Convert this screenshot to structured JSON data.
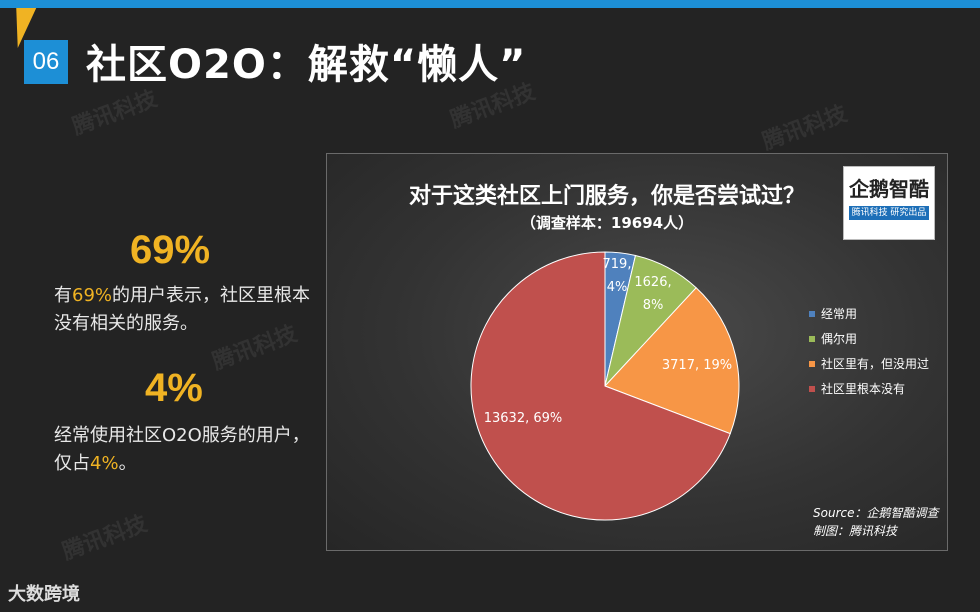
{
  "slide": {
    "number": "06",
    "title": "社区O2O：解救“懒人”",
    "watermark": "腾讯科技",
    "footer_logo": "大数跨境"
  },
  "stats": [
    {
      "value": "69%",
      "desc_before": "有",
      "desc_highlight": "69%",
      "desc_after": "的用户表示，社区里根本没有相关的服务。"
    },
    {
      "value": "4%",
      "desc_before": "经常使用社区O2O服务的用户，仅占",
      "desc_highlight": "4%",
      "desc_after": "。"
    }
  ],
  "logo": {
    "main": "企鹅智酷",
    "sub": "腾讯科技 研究出品"
  },
  "chart_data": {
    "type": "pie",
    "title": "对于这类社区上门服务，你是否尝试过？",
    "subtitle": "（调查样本：19694人）",
    "slices": [
      {
        "name": "经常用",
        "value": 719,
        "percent": 4,
        "color": "#4f81bd",
        "label_line1": "719,",
        "label_line2": "4%"
      },
      {
        "name": "偶尔用",
        "value": 1626,
        "percent": 8,
        "color": "#9bbb59",
        "label_line1": "1626,",
        "label_line2": "8%"
      },
      {
        "name": "社区里有，但没用过",
        "value": 3717,
        "percent": 19,
        "color": "#f79646",
        "label_line1": "3717, 19%",
        "label_line2": ""
      },
      {
        "name": "社区里根本没有",
        "value": 13632,
        "percent": 69,
        "color": "#c0504d",
        "label_line1": "13632, 69%",
        "label_line2": ""
      }
    ],
    "legend_position": "right",
    "source_line1": "Source：企鹅智酷调查",
    "source_line2": "制图：腾讯科技"
  }
}
